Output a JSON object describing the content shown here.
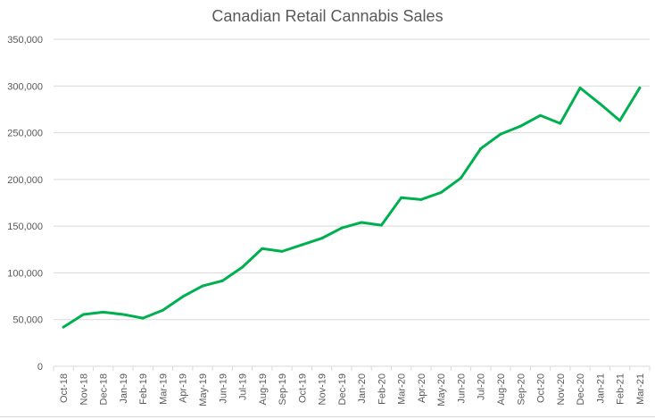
{
  "chart_data": {
    "type": "line",
    "title": "Canadian Retail Cannabis Sales",
    "xlabel": "",
    "ylabel": "",
    "ylim": [
      0,
      350000
    ],
    "yticks": [
      0,
      50000,
      100000,
      150000,
      200000,
      250000,
      300000,
      350000
    ],
    "ytick_labels": [
      "0",
      "50,000",
      "100,000",
      "150,000",
      "200,000",
      "250,000",
      "300,000",
      "350,000"
    ],
    "grid": true,
    "legend": "none",
    "categories": [
      "Oct-18",
      "Nov-18",
      "Dec-18",
      "Jan-19",
      "Feb-19",
      "Mar-19",
      "Apr-19",
      "May-19",
      "Jun-19",
      "Jul-19",
      "Aug-19",
      "Sep-19",
      "Oct-19",
      "Nov-19",
      "Dec-19",
      "Jan-20",
      "Feb-20",
      "Mar-20",
      "Apr-20",
      "May-20",
      "Jun-20",
      "Jul-20",
      "Aug-20",
      "Sep-20",
      "Oct-20",
      "Nov-20",
      "Dec-20",
      "Jan-21",
      "Feb-21",
      "Mar-21"
    ],
    "series": [
      {
        "color": "#00b050",
        "values": [
          42000,
          55500,
          58000,
          55500,
          51500,
          60000,
          74500,
          86000,
          91500,
          106000,
          126000,
          123000,
          130000,
          137000,
          148000,
          154000,
          151000,
          180500,
          178500,
          186000,
          201500,
          233000,
          248500,
          257000,
          268500,
          260000,
          298000,
          281000,
          263000,
          298000
        ]
      }
    ]
  }
}
